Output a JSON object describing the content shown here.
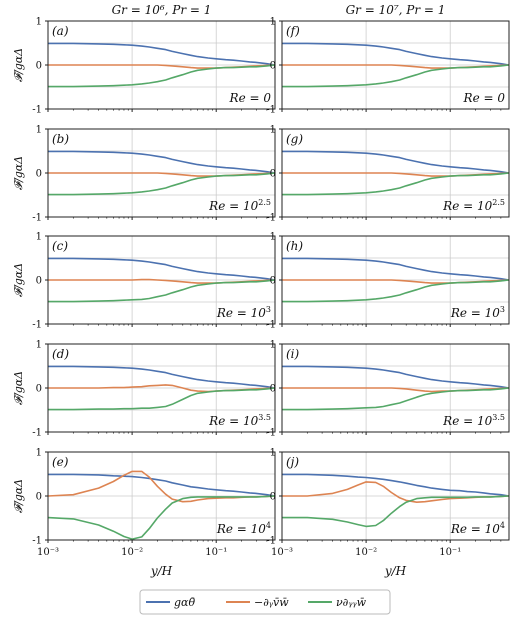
{
  "figure": {
    "column_titles": [
      "Gr = 10⁶,  Pr = 1",
      "Gr = 10⁷,  Pr = 1"
    ],
    "ylabel": "𝓕/gαΔ",
    "xlabel": "y/H",
    "xticks": [
      "10⁻³",
      "10⁻²",
      "10⁻¹"
    ],
    "yticks": [
      "-1",
      "0",
      "1"
    ],
    "legend": [
      "gαθ̄",
      "−∂ᵧv̄w̄",
      "ν∂ᵧᵧw̄"
    ],
    "colors": {
      "blue": "#4c72b0",
      "orange": "#dd8452",
      "green": "#55a868",
      "grid": "#cccccc"
    }
  },
  "chart_data": {
    "type": "line",
    "x_scale": "log",
    "xlim": [
      0.001,
      0.5
    ],
    "ylim": [
      -1,
      1
    ],
    "grid": true,
    "legend_position": "bottom-center",
    "x": [
      0.001,
      0.002,
      0.004,
      0.006,
      0.008,
      0.01,
      0.013,
      0.016,
      0.02,
      0.025,
      0.03,
      0.04,
      0.05,
      0.06,
      0.08,
      0.1,
      0.13,
      0.16,
      0.2,
      0.25,
      0.3,
      0.4,
      0.5
    ],
    "series_names": [
      "gαθ̄",
      "−∂ᵧv̄w̄",
      "ν∂ᵧᵧw̄"
    ],
    "panels": [
      {
        "label": "(a)",
        "re": "Re = 0",
        "blue": [
          0.49,
          0.49,
          0.48,
          0.47,
          0.46,
          0.45,
          0.43,
          0.41,
          0.38,
          0.35,
          0.31,
          0.26,
          0.22,
          0.19,
          0.16,
          0.14,
          0.12,
          0.11,
          0.09,
          0.07,
          0.06,
          0.03,
          0.0
        ],
        "orange": [
          0.0,
          0.0,
          0.0,
          0.0,
          0.0,
          0.0,
          0.0,
          0.0,
          0.0,
          -0.01,
          -0.02,
          -0.04,
          -0.06,
          -0.07,
          -0.07,
          -0.07,
          -0.06,
          -0.05,
          -0.04,
          -0.03,
          -0.02,
          -0.01,
          0.0
        ],
        "green": [
          -0.49,
          -0.49,
          -0.48,
          -0.47,
          -0.46,
          -0.45,
          -0.43,
          -0.41,
          -0.38,
          -0.34,
          -0.29,
          -0.22,
          -0.16,
          -0.12,
          -0.09,
          -0.07,
          -0.06,
          -0.06,
          -0.05,
          -0.04,
          -0.04,
          -0.02,
          0.0
        ]
      },
      {
        "label": "(b)",
        "re": "Re = 10^2.5",
        "blue": [
          0.49,
          0.49,
          0.48,
          0.47,
          0.46,
          0.45,
          0.43,
          0.41,
          0.38,
          0.35,
          0.31,
          0.26,
          0.22,
          0.19,
          0.16,
          0.14,
          0.12,
          0.11,
          0.09,
          0.07,
          0.06,
          0.03,
          0.0
        ],
        "orange": [
          0.0,
          0.0,
          0.0,
          0.0,
          0.0,
          0.0,
          0.0,
          0.0,
          0.0,
          -0.01,
          -0.02,
          -0.04,
          -0.06,
          -0.07,
          -0.07,
          -0.07,
          -0.06,
          -0.05,
          -0.04,
          -0.03,
          -0.02,
          -0.01,
          0.0
        ],
        "green": [
          -0.49,
          -0.49,
          -0.48,
          -0.47,
          -0.46,
          -0.45,
          -0.43,
          -0.41,
          -0.38,
          -0.34,
          -0.29,
          -0.22,
          -0.16,
          -0.12,
          -0.09,
          -0.07,
          -0.06,
          -0.06,
          -0.05,
          -0.04,
          -0.04,
          -0.02,
          0.0
        ]
      },
      {
        "label": "(c)",
        "re": "Re = 10^3",
        "blue": [
          0.49,
          0.49,
          0.48,
          0.47,
          0.46,
          0.45,
          0.43,
          0.41,
          0.38,
          0.35,
          0.31,
          0.26,
          0.22,
          0.19,
          0.16,
          0.14,
          0.12,
          0.11,
          0.09,
          0.07,
          0.06,
          0.03,
          0.0
        ],
        "orange": [
          0.0,
          0.0,
          0.0,
          0.0,
          0.0,
          0.0,
          0.01,
          0.01,
          0.0,
          -0.01,
          -0.02,
          -0.04,
          -0.06,
          -0.07,
          -0.07,
          -0.07,
          -0.06,
          -0.05,
          -0.04,
          -0.03,
          -0.02,
          -0.01,
          0.0
        ],
        "green": [
          -0.49,
          -0.49,
          -0.48,
          -0.47,
          -0.46,
          -0.45,
          -0.44,
          -0.42,
          -0.38,
          -0.34,
          -0.29,
          -0.22,
          -0.16,
          -0.12,
          -0.09,
          -0.07,
          -0.06,
          -0.06,
          -0.05,
          -0.04,
          -0.04,
          -0.02,
          0.0
        ]
      },
      {
        "label": "(d)",
        "re": "Re = 10^3.5",
        "blue": [
          0.49,
          0.49,
          0.48,
          0.47,
          0.46,
          0.45,
          0.43,
          0.41,
          0.38,
          0.35,
          0.31,
          0.26,
          0.22,
          0.19,
          0.16,
          0.14,
          0.12,
          0.11,
          0.09,
          0.07,
          0.06,
          0.03,
          0.0
        ],
        "orange": [
          0.0,
          0.0,
          0.0,
          0.01,
          0.01,
          0.02,
          0.03,
          0.05,
          0.06,
          0.07,
          0.06,
          0.0,
          -0.05,
          -0.07,
          -0.08,
          -0.07,
          -0.06,
          -0.05,
          -0.04,
          -0.03,
          -0.02,
          -0.01,
          0.0
        ],
        "green": [
          -0.49,
          -0.49,
          -0.48,
          -0.48,
          -0.47,
          -0.47,
          -0.46,
          -0.46,
          -0.44,
          -0.42,
          -0.37,
          -0.26,
          -0.17,
          -0.12,
          -0.09,
          -0.07,
          -0.06,
          -0.06,
          -0.05,
          -0.04,
          -0.04,
          -0.02,
          0.0
        ]
      },
      {
        "label": "(e)",
        "re": "Re = 10^4",
        "blue": [
          0.49,
          0.49,
          0.48,
          0.46,
          0.45,
          0.44,
          0.42,
          0.4,
          0.37,
          0.34,
          0.3,
          0.25,
          0.21,
          0.19,
          0.16,
          0.14,
          0.12,
          0.11,
          0.09,
          0.07,
          0.06,
          0.03,
          0.0
        ],
        "orange": [
          0.0,
          0.03,
          0.18,
          0.33,
          0.47,
          0.56,
          0.56,
          0.43,
          0.22,
          0.04,
          -0.07,
          -0.13,
          -0.12,
          -0.09,
          -0.06,
          -0.05,
          -0.04,
          -0.04,
          -0.03,
          -0.02,
          -0.02,
          -0.01,
          0.0
        ],
        "green": [
          -0.49,
          -0.52,
          -0.66,
          -0.8,
          -0.92,
          -0.98,
          -0.93,
          -0.74,
          -0.5,
          -0.3,
          -0.16,
          -0.06,
          -0.03,
          -0.02,
          -0.02,
          -0.02,
          -0.02,
          -0.02,
          -0.02,
          -0.02,
          -0.02,
          -0.01,
          0.0
        ]
      },
      {
        "label": "(f)",
        "re": "Re = 0",
        "blue": [
          0.49,
          0.49,
          0.48,
          0.47,
          0.46,
          0.45,
          0.43,
          0.41,
          0.38,
          0.35,
          0.31,
          0.26,
          0.22,
          0.19,
          0.16,
          0.14,
          0.12,
          0.11,
          0.09,
          0.07,
          0.06,
          0.03,
          0.0
        ],
        "orange": [
          0.0,
          0.0,
          0.0,
          0.0,
          0.0,
          0.0,
          0.0,
          0.0,
          0.0,
          -0.01,
          -0.02,
          -0.04,
          -0.06,
          -0.07,
          -0.07,
          -0.07,
          -0.06,
          -0.05,
          -0.04,
          -0.03,
          -0.02,
          -0.01,
          0.0
        ],
        "green": [
          -0.49,
          -0.49,
          -0.48,
          -0.47,
          -0.46,
          -0.45,
          -0.43,
          -0.41,
          -0.38,
          -0.34,
          -0.29,
          -0.22,
          -0.16,
          -0.12,
          -0.09,
          -0.07,
          -0.06,
          -0.06,
          -0.05,
          -0.04,
          -0.04,
          -0.02,
          0.0
        ]
      },
      {
        "label": "(g)",
        "re": "Re = 10^2.5",
        "blue": [
          0.49,
          0.49,
          0.48,
          0.47,
          0.46,
          0.45,
          0.43,
          0.41,
          0.38,
          0.35,
          0.31,
          0.26,
          0.22,
          0.19,
          0.16,
          0.14,
          0.12,
          0.11,
          0.09,
          0.07,
          0.06,
          0.03,
          0.0
        ],
        "orange": [
          0.0,
          0.0,
          0.0,
          0.0,
          0.0,
          0.0,
          0.0,
          0.0,
          0.0,
          -0.01,
          -0.02,
          -0.04,
          -0.06,
          -0.07,
          -0.07,
          -0.07,
          -0.06,
          -0.05,
          -0.04,
          -0.03,
          -0.02,
          -0.01,
          0.0
        ],
        "green": [
          -0.49,
          -0.49,
          -0.48,
          -0.47,
          -0.46,
          -0.45,
          -0.43,
          -0.41,
          -0.38,
          -0.34,
          -0.29,
          -0.22,
          -0.16,
          -0.12,
          -0.09,
          -0.07,
          -0.06,
          -0.06,
          -0.05,
          -0.04,
          -0.04,
          -0.02,
          0.0
        ]
      },
      {
        "label": "(h)",
        "re": "Re = 10^3",
        "blue": [
          0.49,
          0.49,
          0.48,
          0.47,
          0.46,
          0.45,
          0.43,
          0.41,
          0.38,
          0.35,
          0.31,
          0.26,
          0.22,
          0.19,
          0.16,
          0.14,
          0.12,
          0.11,
          0.09,
          0.07,
          0.06,
          0.03,
          0.0
        ],
        "orange": [
          0.0,
          0.0,
          0.0,
          0.0,
          0.0,
          0.0,
          0.0,
          0.0,
          0.0,
          -0.01,
          -0.02,
          -0.04,
          -0.06,
          -0.07,
          -0.07,
          -0.07,
          -0.06,
          -0.05,
          -0.04,
          -0.03,
          -0.02,
          -0.01,
          0.0
        ],
        "green": [
          -0.49,
          -0.49,
          -0.48,
          -0.47,
          -0.46,
          -0.45,
          -0.43,
          -0.41,
          -0.38,
          -0.34,
          -0.29,
          -0.22,
          -0.16,
          -0.12,
          -0.09,
          -0.07,
          -0.06,
          -0.06,
          -0.05,
          -0.04,
          -0.04,
          -0.02,
          0.0
        ]
      },
      {
        "label": "(i)",
        "re": "Re = 10^3.5",
        "blue": [
          0.49,
          0.49,
          0.48,
          0.47,
          0.46,
          0.45,
          0.43,
          0.41,
          0.38,
          0.35,
          0.31,
          0.26,
          0.22,
          0.19,
          0.16,
          0.14,
          0.12,
          0.11,
          0.09,
          0.07,
          0.06,
          0.03,
          0.0
        ],
        "orange": [
          0.0,
          0.0,
          0.0,
          0.0,
          0.0,
          0.0,
          0.0,
          0.0,
          0.0,
          -0.01,
          -0.02,
          -0.05,
          -0.07,
          -0.08,
          -0.07,
          -0.07,
          -0.06,
          -0.05,
          -0.04,
          -0.03,
          -0.02,
          -0.01,
          0.0
        ],
        "green": [
          -0.49,
          -0.49,
          -0.48,
          -0.47,
          -0.46,
          -0.45,
          -0.44,
          -0.42,
          -0.38,
          -0.34,
          -0.29,
          -0.21,
          -0.15,
          -0.12,
          -0.09,
          -0.07,
          -0.06,
          -0.06,
          -0.05,
          -0.04,
          -0.04,
          -0.02,
          0.0
        ]
      },
      {
        "label": "(j)",
        "re": "Re = 10^4",
        "blue": [
          0.49,
          0.49,
          0.47,
          0.45,
          0.43,
          0.42,
          0.4,
          0.38,
          0.35,
          0.32,
          0.29,
          0.24,
          0.21,
          0.18,
          0.15,
          0.13,
          0.12,
          0.1,
          0.09,
          0.07,
          0.05,
          0.03,
          0.0
        ],
        "orange": [
          0.0,
          0.0,
          0.06,
          0.15,
          0.25,
          0.32,
          0.31,
          0.22,
          0.08,
          -0.04,
          -0.1,
          -0.14,
          -0.13,
          -0.11,
          -0.08,
          -0.06,
          -0.05,
          -0.04,
          -0.03,
          -0.02,
          -0.02,
          -0.01,
          0.0
        ],
        "green": [
          -0.49,
          -0.49,
          -0.53,
          -0.59,
          -0.65,
          -0.69,
          -0.67,
          -0.56,
          -0.39,
          -0.24,
          -0.14,
          -0.06,
          -0.04,
          -0.03,
          -0.03,
          -0.03,
          -0.03,
          -0.03,
          -0.02,
          -0.02,
          -0.02,
          -0.01,
          0.0
        ]
      }
    ]
  }
}
